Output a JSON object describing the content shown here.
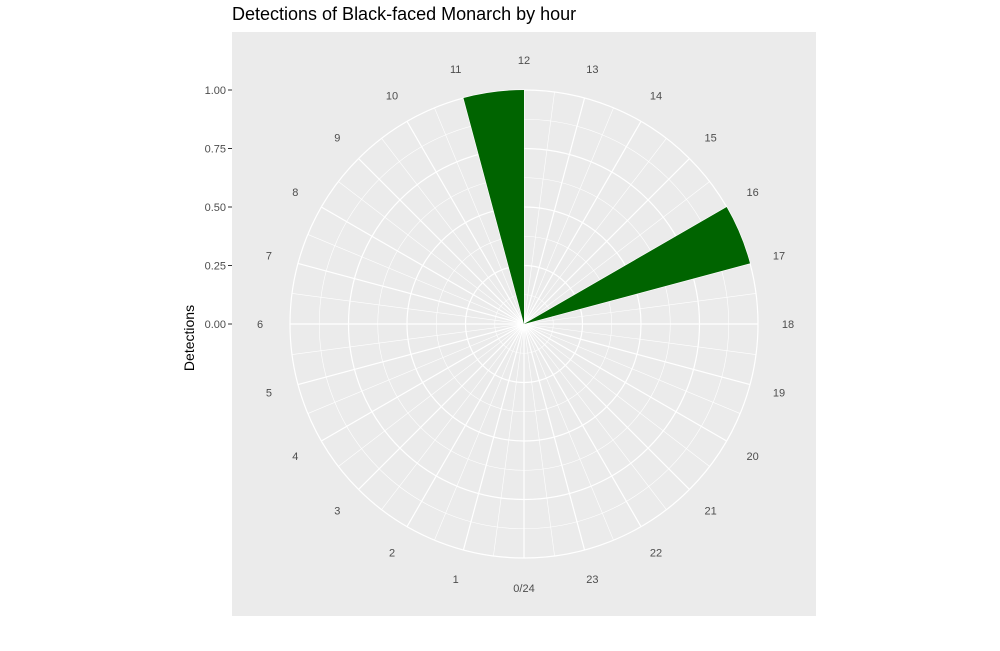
{
  "chart_data": {
    "type": "bar",
    "coord": "polar",
    "title": "Detections of Black-faced Monarch by hour",
    "xlabel": "",
    "ylabel": "Detections",
    "categories": [
      "0/24",
      "1",
      "2",
      "3",
      "4",
      "5",
      "6",
      "7",
      "8",
      "9",
      "10",
      "11",
      "12",
      "13",
      "14",
      "15",
      "16",
      "17",
      "18",
      "19",
      "20",
      "21",
      "22",
      "23"
    ],
    "values": [
      0,
      0,
      0,
      0,
      0,
      0,
      0,
      0,
      0,
      0,
      0,
      1,
      0,
      0,
      0,
      0,
      1,
      0,
      0,
      0,
      0,
      0,
      0,
      0
    ],
    "ylim": [
      0,
      1.0
    ],
    "y_ticks": [
      "0.00",
      "0.25",
      "0.50",
      "0.75",
      "1.00"
    ],
    "grid": true,
    "colors": {
      "bar": "#006400",
      "panel": "#ebebeb",
      "grid": "#ffffff"
    }
  }
}
